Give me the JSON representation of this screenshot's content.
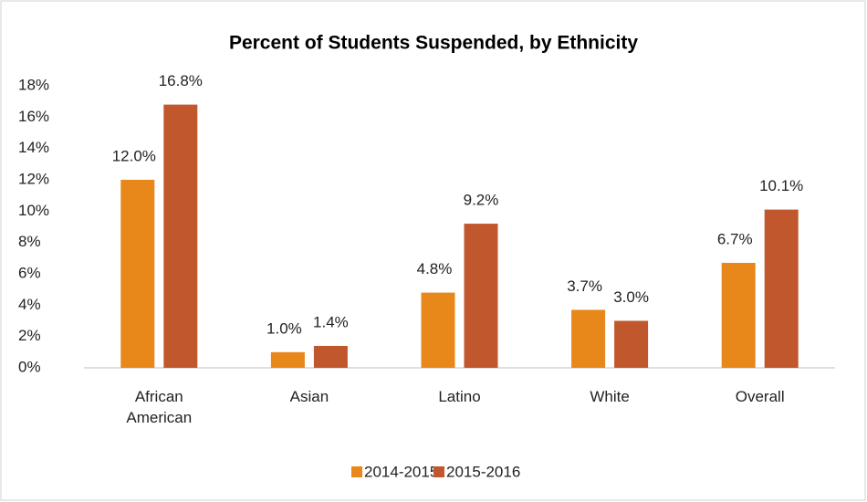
{
  "chart_data": {
    "type": "bar",
    "title": "Percent of Students Suspended, by Ethnicity",
    "categories": [
      "African American",
      "Asian",
      "Latino",
      "White",
      "Overall"
    ],
    "series": [
      {
        "name": "2014-2015",
        "color": "#e8871a",
        "values": [
          12.0,
          1.0,
          4.8,
          3.7,
          6.7
        ],
        "value_labels": [
          "12.0%",
          "1.0%",
          "4.8%",
          "3.7%",
          "6.7%"
        ]
      },
      {
        "name": "2015-2016",
        "color": "#c0572d",
        "values": [
          16.8,
          1.4,
          9.2,
          3.0,
          10.1
        ],
        "value_labels": [
          "16.8%",
          "1.4%",
          "9.2%",
          "3.0%",
          "10.1%"
        ]
      }
    ],
    "ylim": [
      0,
      18
    ],
    "yticks": [
      {
        "value": 0,
        "label": "0%"
      },
      {
        "value": 2,
        "label": "2%"
      },
      {
        "value": 4,
        "label": "4%"
      },
      {
        "value": 6,
        "label": "6%"
      },
      {
        "value": 8,
        "label": "8%"
      },
      {
        "value": 10,
        "label": "10%"
      },
      {
        "value": 12,
        "label": "12%"
      },
      {
        "value": 14,
        "label": "14%"
      },
      {
        "value": 16,
        "label": "16%"
      },
      {
        "value": 18,
        "label": "18%"
      }
    ],
    "grid": false,
    "legend": "bottom"
  }
}
